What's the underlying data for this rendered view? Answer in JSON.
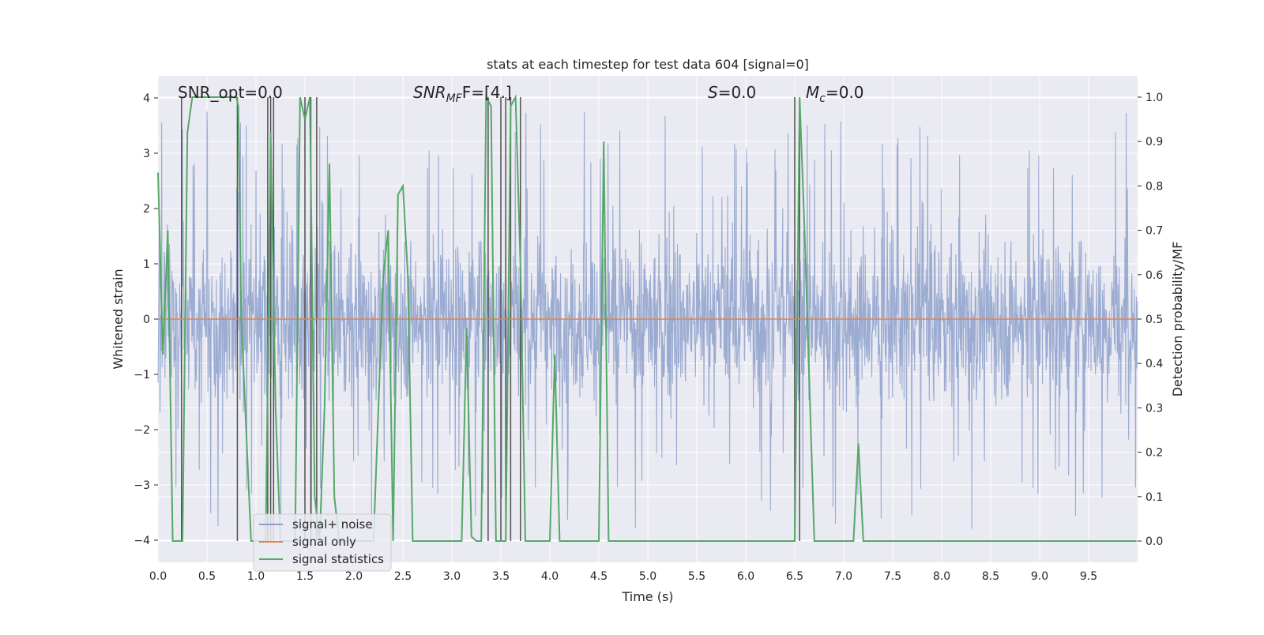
{
  "chart_data": {
    "type": "line",
    "title": "stats at each timestep for test data 604 [signal=0]",
    "xlabel": "Time (s)",
    "ylabel": "Whitened strain",
    "ylabel_right": "Detection probability/MF",
    "xlim": [
      0.0,
      10.0
    ],
    "ylim": [
      -4.4,
      4.4
    ],
    "ylim_right": [
      -0.048,
      1.048
    ],
    "x_ticks": [
      "0.0",
      "0.5",
      "1.0",
      "1.5",
      "2.0",
      "2.5",
      "3.0",
      "3.5",
      "4.0",
      "4.5",
      "5.0",
      "5.5",
      "6.0",
      "6.5",
      "7.0",
      "7.5",
      "8.0",
      "8.5",
      "9.0",
      "9.5"
    ],
    "y_ticks": [
      "4",
      "3",
      "2",
      "1",
      "0",
      "−1",
      "−2",
      "−3",
      "−4"
    ],
    "y_right_ticks": [
      "1.0",
      "0.9",
      "0.8",
      "0.7",
      "0.6",
      "0.5",
      "0.4",
      "0.3",
      "0.2",
      "0.1",
      "0.0"
    ],
    "annotations": {
      "snr_opt": "SNR_opt=0.0",
      "snr_mf_main": "SNR",
      "snr_mf_sub": "MF",
      "snr_mf_tail": "F=[4.]",
      "s_var": "S",
      "s_tail": "=0.0",
      "mc_var": "M",
      "mc_sub": "c",
      "mc_tail": "=0.0"
    },
    "legend": {
      "placement": "lower-left",
      "entries": [
        "signal+ noise",
        "signal only",
        "signal statistics"
      ]
    },
    "grid": true,
    "colors": {
      "noise": "#8da0cb",
      "signal_only": "#dd8452",
      "statistics": "#55a868",
      "vlines": "#505050",
      "background": "#eaeaf2"
    },
    "series": [
      {
        "name": "signal+ noise",
        "description": "whitened strain noise, approx uniform band between -2 and 2 with spikes up to ±3.8",
        "envelope": [
          -2.3,
          2.3
        ],
        "spike_range": [
          -4.0,
          4.0
        ]
      },
      {
        "name": "signal only",
        "x": [
          0.0,
          10.0
        ],
        "y": [
          0.0,
          0.0
        ]
      },
      {
        "name": "signal statistics",
        "axis": "right",
        "x": [
          0.0,
          0.05,
          0.1,
          0.15,
          0.18,
          0.25,
          0.3,
          0.35,
          0.8,
          0.82,
          0.85,
          0.95,
          1.0,
          1.05,
          1.1,
          1.15,
          1.2,
          1.25,
          1.3,
          1.4,
          1.45,
          1.5,
          1.55,
          1.6,
          1.65,
          1.7,
          1.75,
          1.8,
          1.85,
          2.0,
          2.2,
          2.3,
          2.35,
          2.4,
          2.45,
          2.5,
          2.55,
          2.6,
          2.65,
          3.0,
          3.1,
          3.15,
          3.2,
          3.25,
          3.3,
          3.35,
          3.4,
          3.45,
          3.5,
          3.55,
          3.6,
          3.65,
          3.7,
          3.75,
          3.8,
          3.85,
          3.9,
          3.95,
          4.0,
          4.05,
          4.1,
          4.15,
          4.2,
          4.5,
          4.55,
          4.6,
          4.65,
          6.5,
          6.55,
          6.6,
          6.7,
          6.75,
          7.1,
          7.15,
          7.2,
          7.25,
          7.3,
          9.99
        ],
        "y": [
          0.83,
          0.42,
          0.7,
          0.0,
          0.0,
          0.0,
          0.92,
          1.0,
          1.0,
          0.98,
          0.5,
          0.0,
          0.0,
          0.0,
          0.0,
          0.92,
          0.3,
          0.0,
          0.0,
          0.0,
          1.0,
          0.95,
          1.0,
          0.1,
          0.0,
          0.3,
          0.85,
          0.1,
          0.0,
          0.0,
          0.0,
          0.6,
          0.7,
          0.0,
          0.78,
          0.8,
          0.6,
          0.0,
          0.0,
          0.0,
          0.0,
          0.48,
          0.01,
          0.0,
          0.0,
          1.0,
          0.98,
          0.0,
          0.0,
          0.0,
          0.98,
          1.0,
          0.62,
          0.0,
          0.0,
          0.0,
          0.0,
          0.0,
          0.0,
          0.42,
          0.0,
          0.0,
          0.0,
          0.0,
          0.9,
          0.0,
          0.0,
          0.0,
          1.0,
          0.7,
          0.0,
          0.0,
          0.0,
          0.22,
          0.0,
          0.0,
          0.0,
          0.0
        ]
      }
    ],
    "vlines_x": [
      0.24,
      0.81,
      1.12,
      1.15,
      1.18,
      1.5,
      1.56,
      1.62,
      3.37,
      3.5,
      3.55,
      3.6,
      3.7,
      6.5,
      6.55
    ]
  }
}
